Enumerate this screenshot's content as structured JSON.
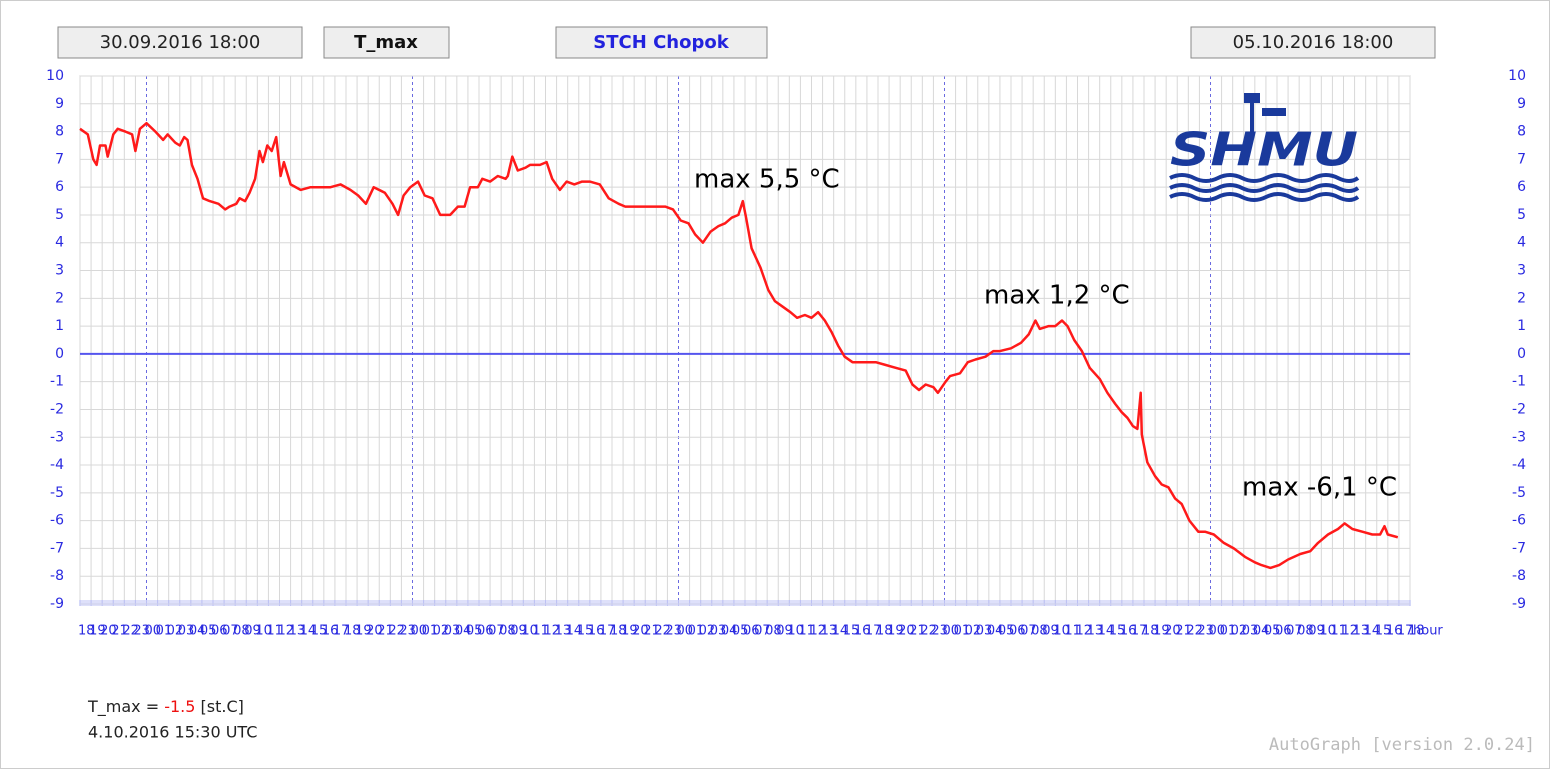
{
  "chart_data": {
    "type": "line",
    "range_start": "30.09.2016 18:00",
    "variable": "T_max",
    "station": "STCH Chopok",
    "range_end": "05.10.2016 18:00",
    "logo": "SHMU",
    "x_label": "hour",
    "annotations": [
      "max 5,5 °C",
      "max 1,2 °C",
      "max -6,1 °C"
    ],
    "readout": {
      "prefix": "T_max =",
      "value": "-1.5",
      "unit": "[st.C]",
      "time": "4.10.2016 15:30 UTC"
    },
    "footer": "AutoGraph [version 2.0.24]",
    "color": "#ff1a1a",
    "zero_line": true,
    "grid": true,
    "xlim": [
      0,
      120
    ],
    "ylim": [
      -9,
      10
    ],
    "yticks": [
      -9,
      -8,
      -7,
      -6,
      -5,
      -4,
      -3,
      -2,
      -1,
      0,
      1,
      2,
      3,
      4,
      5,
      6,
      7,
      8,
      9,
      10
    ],
    "xticks": [
      {
        "value": 0,
        "label": "18"
      },
      {
        "value": 1,
        "label": "19"
      },
      {
        "value": 2,
        "label": "20"
      },
      {
        "value": 3,
        "label": "21"
      },
      {
        "value": 4,
        "label": "22"
      },
      {
        "value": 5,
        "label": "23"
      },
      {
        "value": 6,
        "label": "00"
      },
      {
        "value": 7,
        "label": "01"
      },
      {
        "value": 8,
        "label": "02"
      },
      {
        "value": 9,
        "label": "03"
      },
      {
        "value": 10,
        "label": "04"
      },
      {
        "value": 11,
        "label": "05"
      },
      {
        "value": 12,
        "label": "06"
      },
      {
        "value": 13,
        "label": "07"
      },
      {
        "value": 14,
        "label": "08"
      },
      {
        "value": 15,
        "label": "09"
      },
      {
        "value": 16,
        "label": "10"
      },
      {
        "value": 17,
        "label": "11"
      },
      {
        "value": 18,
        "label": "12"
      },
      {
        "value": 19,
        "label": "13"
      },
      {
        "value": 20,
        "label": "14"
      },
      {
        "value": 21,
        "label": "15"
      },
      {
        "value": 22,
        "label": "16"
      },
      {
        "value": 23,
        "label": "17"
      },
      {
        "value": 24,
        "label": "18"
      },
      {
        "value": 25,
        "label": "19"
      },
      {
        "value": 26,
        "label": "20"
      },
      {
        "value": 27,
        "label": "21"
      },
      {
        "value": 28,
        "label": "22"
      },
      {
        "value": 29,
        "label": "23"
      },
      {
        "value": 30,
        "label": "00"
      },
      {
        "value": 31,
        "label": "01"
      },
      {
        "value": 32,
        "label": "02"
      },
      {
        "value": 33,
        "label": "03"
      },
      {
        "value": 34,
        "label": "04"
      },
      {
        "value": 35,
        "label": "05"
      },
      {
        "value": 36,
        "label": "06"
      },
      {
        "value": 37,
        "label": "07"
      },
      {
        "value": 38,
        "label": "08"
      },
      {
        "value": 39,
        "label": "09"
      },
      {
        "value": 40,
        "label": "10"
      },
      {
        "value": 41,
        "label": "11"
      },
      {
        "value": 42,
        "label": "12"
      },
      {
        "value": 43,
        "label": "13"
      },
      {
        "value": 44,
        "label": "14"
      },
      {
        "value": 45,
        "label": "15"
      },
      {
        "value": 46,
        "label": "16"
      },
      {
        "value": 47,
        "label": "17"
      },
      {
        "value": 48,
        "label": "18"
      },
      {
        "value": 49,
        "label": "19"
      },
      {
        "value": 50,
        "label": "20"
      },
      {
        "value": 51,
        "label": "21"
      },
      {
        "value": 52,
        "label": "22"
      },
      {
        "value": 53,
        "label": "23"
      },
      {
        "value": 54,
        "label": "00"
      },
      {
        "value": 55,
        "label": "01"
      },
      {
        "value": 56,
        "label": "02"
      },
      {
        "value": 57,
        "label": "03"
      },
      {
        "value": 58,
        "label": "04"
      },
      {
        "value": 59,
        "label": "05"
      },
      {
        "value": 60,
        "label": "06"
      },
      {
        "value": 61,
        "label": "07"
      },
      {
        "value": 62,
        "label": "08"
      },
      {
        "value": 63,
        "label": "09"
      },
      {
        "value": 64,
        "label": "10"
      },
      {
        "value": 65,
        "label": "11"
      },
      {
        "value": 66,
        "label": "12"
      },
      {
        "value": 67,
        "label": "13"
      },
      {
        "value": 68,
        "label": "14"
      },
      {
        "value": 69,
        "label": "15"
      },
      {
        "value": 70,
        "label": "16"
      },
      {
        "value": 71,
        "label": "17"
      },
      {
        "value": 72,
        "label": "18"
      },
      {
        "value": 73,
        "label": "19"
      },
      {
        "value": 74,
        "label": "20"
      },
      {
        "value": 75,
        "label": "21"
      },
      {
        "value": 76,
        "label": "22"
      },
      {
        "value": 77,
        "label": "23"
      },
      {
        "value": 78,
        "label": "00"
      },
      {
        "value": 79,
        "label": "01"
      },
      {
        "value": 80,
        "label": "02"
      },
      {
        "value": 81,
        "label": "03"
      },
      {
        "value": 82,
        "label": "04"
      },
      {
        "value": 83,
        "label": "05"
      },
      {
        "value": 84,
        "label": "06"
      },
      {
        "value": 85,
        "label": "07"
      },
      {
        "value": 86,
        "label": "08"
      },
      {
        "value": 87,
        "label": "09"
      },
      {
        "value": 88,
        "label": "10"
      },
      {
        "value": 89,
        "label": "11"
      },
      {
        "value": 90,
        "label": "12"
      },
      {
        "value": 91,
        "label": "13"
      },
      {
        "value": 92,
        "label": "14"
      },
      {
        "value": 93,
        "label": "15"
      },
      {
        "value": 94,
        "label": "16"
      },
      {
        "value": 95,
        "label": "17"
      },
      {
        "value": 96,
        "label": "18"
      },
      {
        "value": 97,
        "label": "19"
      },
      {
        "value": 98,
        "label": "20"
      },
      {
        "value": 99,
        "label": "21"
      },
      {
        "value": 100,
        "label": "22"
      },
      {
        "value": 101,
        "label": "23"
      },
      {
        "value": 102,
        "label": "00"
      },
      {
        "value": 103,
        "label": "01"
      },
      {
        "value": 104,
        "label": "02"
      },
      {
        "value": 105,
        "label": "03"
      },
      {
        "value": 106,
        "label": "04"
      },
      {
        "value": 107,
        "label": "05"
      },
      {
        "value": 108,
        "label": "06"
      },
      {
        "value": 109,
        "label": "07"
      },
      {
        "value": 110,
        "label": "08"
      },
      {
        "value": 111,
        "label": "09"
      },
      {
        "value": 112,
        "label": "10"
      },
      {
        "value": 113,
        "label": "11"
      },
      {
        "value": 114,
        "label": "12"
      },
      {
        "value": 115,
        "label": "13"
      },
      {
        "value": 116,
        "label": "14"
      },
      {
        "value": 117,
        "label": "15"
      },
      {
        "value": 118,
        "label": "16"
      },
      {
        "value": 119,
        "label": "17"
      },
      {
        "value": 120,
        "label": "18"
      }
    ],
    "x": [
      0,
      0.7,
      1.2,
      1.5,
      1.8,
      2.3,
      2.5,
      3.0,
      3.4,
      4.1,
      4.7,
      5.0,
      5.4,
      6.0,
      6.8,
      7.5,
      7.9,
      8.6,
      9.0,
      9.4,
      9.7,
      10.1,
      10.6,
      11.1,
      11.7,
      12.5,
      13.1,
      13.5,
      14.1,
      14.4,
      14.9,
      15.3,
      15.8,
      16.2,
      16.5,
      16.9,
      17.3,
      17.7,
      18.1,
      18.4,
      19.0,
      19.9,
      20.8,
      21.7,
      22.6,
      23.5,
      24.4,
      25.1,
      25.8,
      26.5,
      27.5,
      28.2,
      28.7,
      29.2,
      29.8,
      30.5,
      31.1,
      31.8,
      32.5,
      33.4,
      34.1,
      34.7,
      35.2,
      35.9,
      36.3,
      37.0,
      37.7,
      38.4,
      38.6,
      39.0,
      39.5,
      40.2,
      40.6,
      41.5,
      42.1,
      42.6,
      43.3,
      43.9,
      44.6,
      45.3,
      46.0,
      46.9,
      47.7,
      48.6,
      49.2,
      50.1,
      51.0,
      51.9,
      52.8,
      53.5,
      54.2,
      54.9,
      55.5,
      56.2,
      56.9,
      57.6,
      58.2,
      58.8,
      59.4,
      59.8,
      60.1,
      60.6,
      61.4,
      62.1,
      62.7,
      63.4,
      64.1,
      64.7,
      65.4,
      66.0,
      66.6,
      67.2,
      67.8,
      68.4,
      69.0,
      69.7,
      70.8,
      71.8,
      72.7,
      73.6,
      74.5,
      75.1,
      75.7,
      76.3,
      77.0,
      77.4,
      78.1,
      78.5,
      79.4,
      80.1,
      80.8,
      81.7,
      82.4,
      83.0,
      84.0,
      84.9,
      85.6,
      86.2,
      86.6,
      87.4,
      88.0,
      88.6,
      89.1,
      89.7,
      90.4,
      91.1,
      92.0,
      92.7,
      93.4,
      94.0,
      94.5,
      95.0,
      95.4,
      95.7,
      95.8,
      96.3,
      97.0,
      97.6,
      98.2,
      98.8,
      99.4,
      100.1,
      100.9,
      101.5,
      102.3,
      103.2,
      104.1,
      105.1,
      106.0,
      106.6,
      107.4,
      108.2,
      109.0,
      110.1,
      111.0,
      111.7,
      112.6,
      113.5,
      114.1,
      114.8,
      115.7,
      116.6,
      117.3,
      117.7,
      118.0,
      118.9
    ],
    "values": [
      8.1,
      7.9,
      7.0,
      6.8,
      7.5,
      7.5,
      7.1,
      7.9,
      8.1,
      8.0,
      7.9,
      7.3,
      8.1,
      8.3,
      8.0,
      7.7,
      7.9,
      7.6,
      7.5,
      7.8,
      7.7,
      6.8,
      6.3,
      5.6,
      5.5,
      5.4,
      5.2,
      5.3,
      5.4,
      5.6,
      5.5,
      5.8,
      6.3,
      7.3,
      6.9,
      7.5,
      7.3,
      7.8,
      6.4,
      6.9,
      6.1,
      5.9,
      6.0,
      6.0,
      6.0,
      6.1,
      5.9,
      5.7,
      5.4,
      6.0,
      5.8,
      5.4,
      5.0,
      5.7,
      6.0,
      6.2,
      5.7,
      5.6,
      5.0,
      5.0,
      5.3,
      5.3,
      6.0,
      6.0,
      6.3,
      6.2,
      6.4,
      6.3,
      6.4,
      7.1,
      6.6,
      6.7,
      6.8,
      6.8,
      6.9,
      6.3,
      5.9,
      6.2,
      6.1,
      6.2,
      6.2,
      6.1,
      5.6,
      5.4,
      5.3,
      5.3,
      5.3,
      5.3,
      5.3,
      5.2,
      4.8,
      4.7,
      4.3,
      4.0,
      4.4,
      4.6,
      4.7,
      4.9,
      5.0,
      5.5,
      4.9,
      3.8,
      3.1,
      2.3,
      1.9,
      1.7,
      1.5,
      1.3,
      1.4,
      1.3,
      1.5,
      1.2,
      0.8,
      0.3,
      -0.1,
      -0.3,
      -0.3,
      -0.3,
      -0.4,
      -0.5,
      -0.6,
      -1.1,
      -1.3,
      -1.1,
      -1.2,
      -1.4,
      -1.0,
      -0.8,
      -0.7,
      -0.3,
      -0.2,
      -0.1,
      0.1,
      0.1,
      0.2,
      0.4,
      0.7,
      1.2,
      0.9,
      1.0,
      1.0,
      1.2,
      1.0,
      0.5,
      0.1,
      -0.5,
      -0.9,
      -1.4,
      -1.8,
      -2.1,
      -2.3,
      -2.6,
      -2.7,
      -1.4,
      -2.9,
      -3.9,
      -4.4,
      -4.7,
      -4.8,
      -5.2,
      -5.4,
      -6.0,
      -6.4,
      -6.4,
      -6.5,
      -6.8,
      -7.0,
      -7.3,
      -7.5,
      -7.6,
      -7.7,
      -7.6,
      -7.4,
      -7.2,
      -7.1,
      -6.8,
      -6.5,
      -6.3,
      -6.1,
      -6.3,
      -6.4,
      -6.5,
      -6.5,
      -6.2,
      -6.5,
      -6.6
    ]
  }
}
